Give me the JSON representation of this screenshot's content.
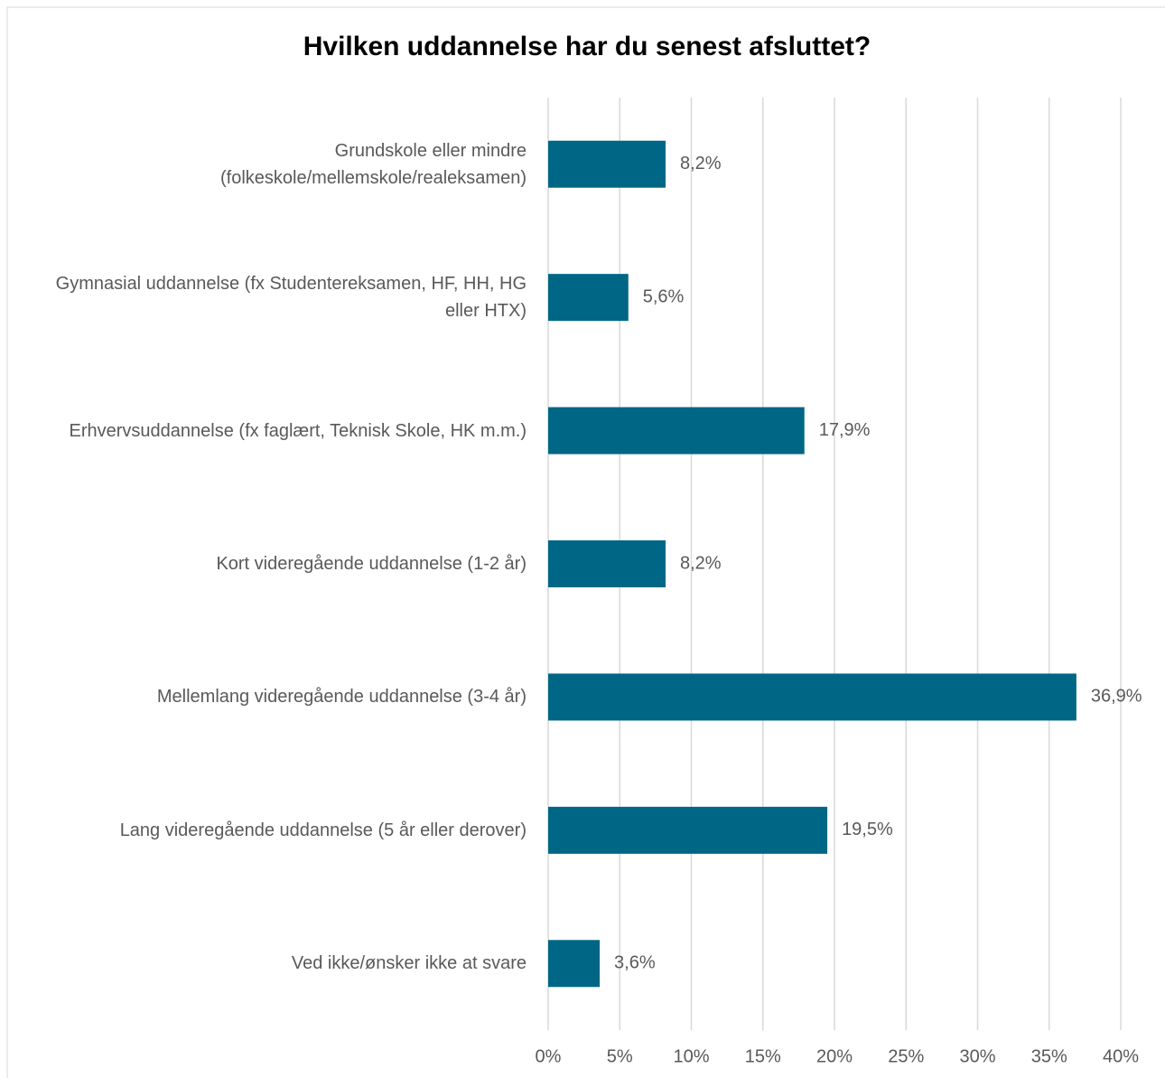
{
  "chart_data": {
    "type": "bar",
    "orientation": "horizontal",
    "title": "Hvilken uddannelse har du senest afsluttet?",
    "categories": [
      "Grundskole eller mindre\n(folkeskole/mellemskole/realeksamen)",
      "Gymnasial uddannelse (fx Studentereksamen, HF, HH, HG\neller HTX)",
      "Erhvervsuddannelse (fx faglært, Teknisk Skole, HK m.m.)",
      "Kort videregående uddannelse (1-2 år)",
      "Mellemlang videregående uddannelse (3-4 år)",
      "Lang videregående uddannelse (5 år eller derover)",
      "Ved ikke/ønsker ikke at svare"
    ],
    "values": [
      8.2,
      5.6,
      17.9,
      8.2,
      36.9,
      19.5,
      3.6
    ],
    "value_labels": [
      "8,2%",
      "5,6%",
      "17,9%",
      "8,2%",
      "36,9%",
      "19,5%",
      "3,6%"
    ],
    "color": "#006685",
    "xlim": [
      0,
      40
    ],
    "xticks": [
      {
        "value": 0,
        "label": "0%"
      },
      {
        "value": 5,
        "label": "5%"
      },
      {
        "value": 10,
        "label": "10%"
      },
      {
        "value": 15,
        "label": "15%"
      },
      {
        "value": 20,
        "label": "20%"
      },
      {
        "value": 25,
        "label": "25%"
      },
      {
        "value": 30,
        "label": "30%"
      },
      {
        "value": 35,
        "label": "35%"
      },
      {
        "value": 40,
        "label": "40%"
      }
    ],
    "grid": true
  }
}
